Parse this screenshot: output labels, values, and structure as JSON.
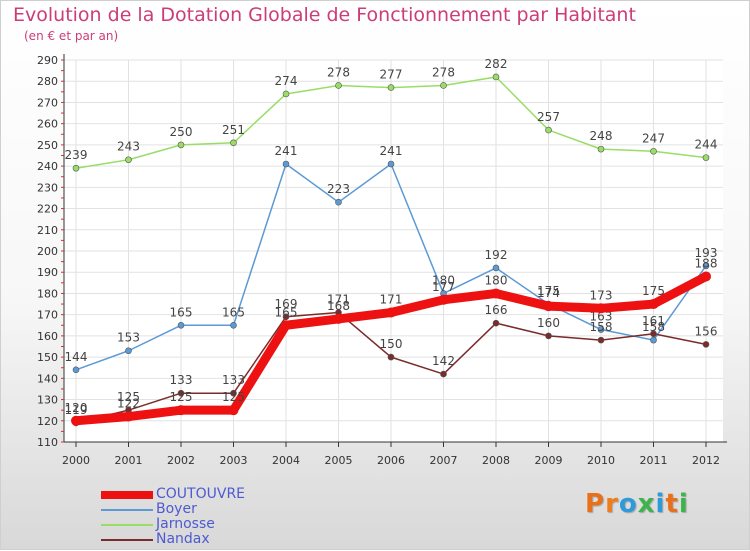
{
  "chart_data": {
    "type": "line",
    "title": "Evolution de la Dotation Globale de Fonctionnement par Habitant",
    "subtitle": "(en € et par an)",
    "xlabel": "",
    "ylabel": "",
    "categories": [
      "2000",
      "2001",
      "2002",
      "2003",
      "2004",
      "2005",
      "2006",
      "2007",
      "2008",
      "2009",
      "2010",
      "2011",
      "2012"
    ],
    "ylim": [
      110,
      290
    ],
    "yticks": [
      110,
      120,
      130,
      140,
      150,
      160,
      170,
      180,
      190,
      200,
      210,
      220,
      230,
      240,
      250,
      260,
      270,
      280,
      290
    ],
    "grid": true,
    "legend_position": "bottom-left",
    "series": [
      {
        "name": "Jarnosse",
        "color": "#99dd66",
        "values": [
          239,
          243,
          250,
          251,
          274,
          278,
          277,
          278,
          282,
          257,
          248,
          247,
          244
        ]
      },
      {
        "name": "Boyer",
        "color": "#5b9ad5",
        "values": [
          144,
          153,
          165,
          165,
          241,
          223,
          241,
          180,
          192,
          175,
          163,
          158,
          193
        ]
      },
      {
        "name": "Nandax",
        "color": "#7a2c2c",
        "values": [
          119,
          125,
          133,
          133,
          169,
          171,
          150,
          142,
          166,
          160,
          158,
          161,
          156
        ]
      },
      {
        "name": "COUTOUVRE",
        "color": "#ee1111",
        "values": [
          120,
          122,
          125,
          125,
          165,
          168,
          171,
          177,
          180,
          174,
          173,
          175,
          188
        ]
      }
    ]
  },
  "legend": [
    {
      "label": "COUTOUVRE",
      "color": "#ee1111"
    },
    {
      "label": "Boyer",
      "color": "#5b9ad5"
    },
    {
      "label": "Jarnosse",
      "color": "#99dd66"
    },
    {
      "label": "Nandax",
      "color": "#7a2c2c"
    }
  ],
  "brand": {
    "text": "Proxiti",
    "letter_colors": [
      "#e8701a",
      "#ee7d1c",
      "#2e9ad8",
      "#3cb44b",
      "#2e9ad8",
      "#e8701a",
      "#3cb44b"
    ]
  }
}
